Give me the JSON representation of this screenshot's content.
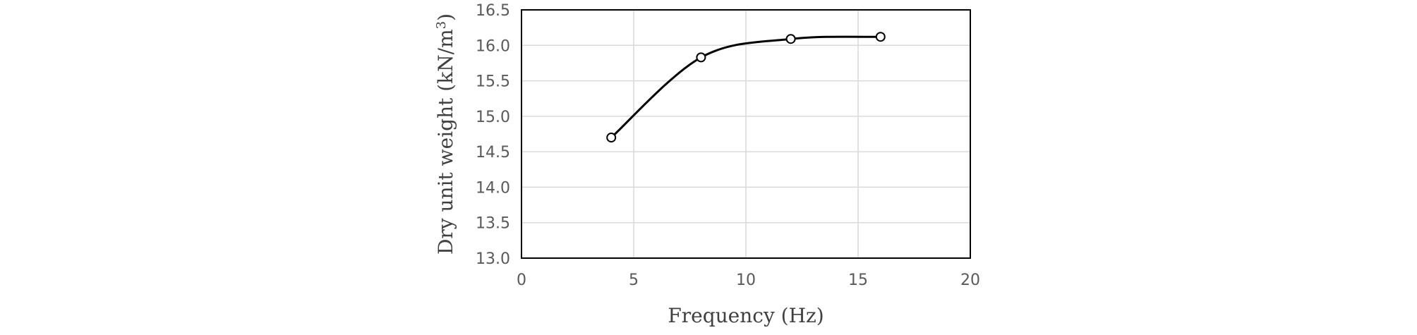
{
  "chart_data": {
    "type": "line",
    "title": "",
    "xlabel": "Frequency (Hz)",
    "ylabel": "Dry unit weight (kN/m3)",
    "xlim": [
      0,
      20
    ],
    "ylim": [
      13.0,
      16.5
    ],
    "x_ticks": [
      "0",
      "5",
      "10",
      "15",
      "20"
    ],
    "y_ticks": [
      "13.0",
      "13.5",
      "14.0",
      "14.5",
      "15.0",
      "15.5",
      "16.0",
      "16.5"
    ],
    "grid": true,
    "legend": "none",
    "smooth": true,
    "series": [
      {
        "x": [
          4,
          8,
          12,
          16
        ],
        "y": [
          14.7,
          15.83,
          16.09,
          16.12
        ]
      }
    ],
    "colors": {
      "line": "#000000",
      "marker_fill": "#ffffff",
      "grid": "#d9d9d9",
      "tick_text": "#595959",
      "title_text": "#404040"
    }
  }
}
